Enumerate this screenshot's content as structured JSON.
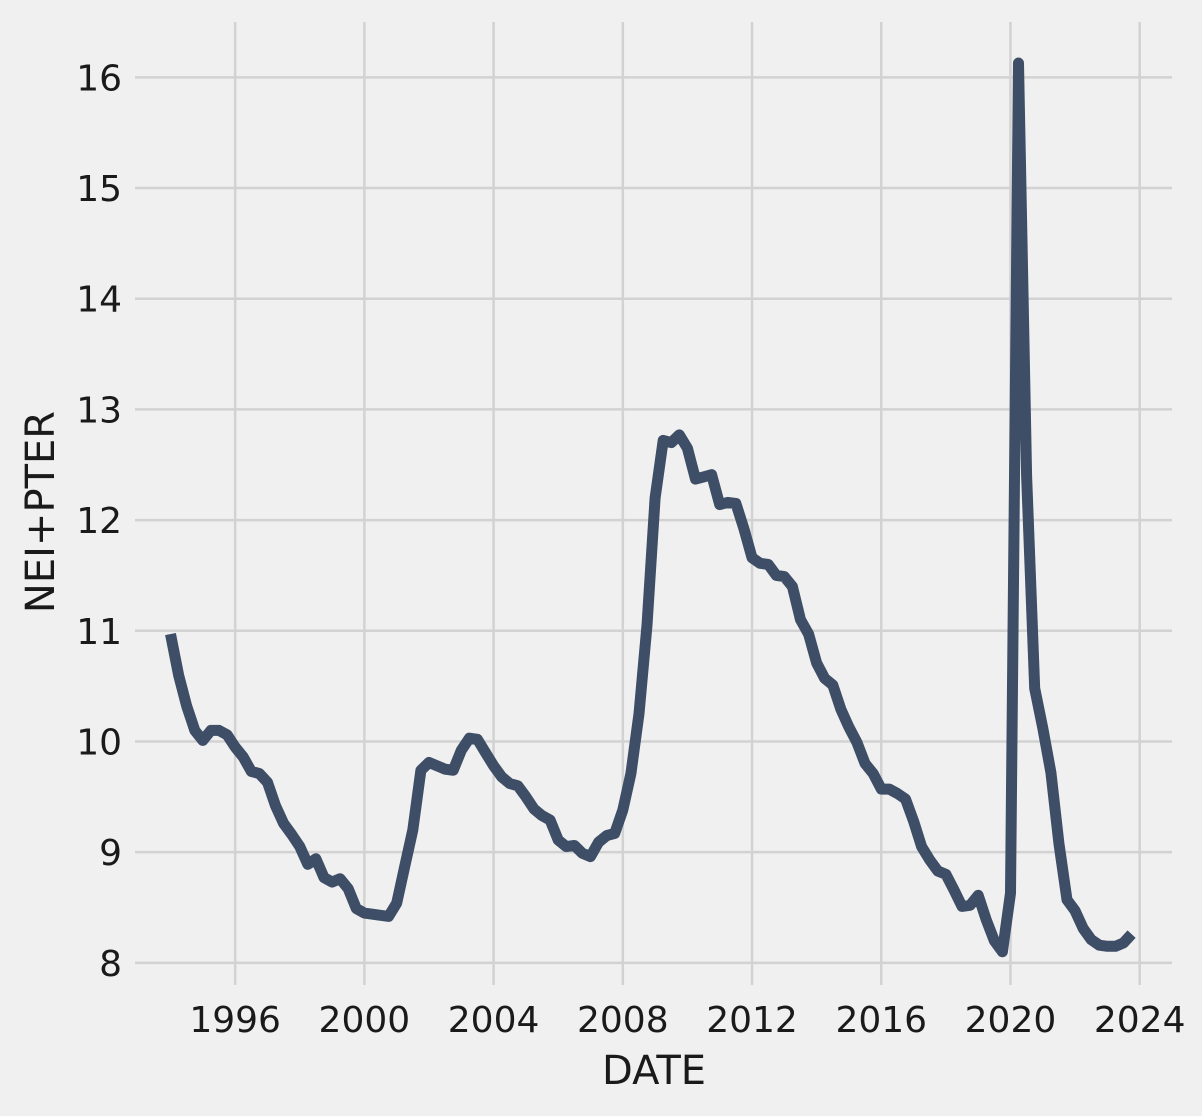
{
  "chart_data": {
    "type": "line",
    "title": "",
    "xlabel": "DATE",
    "ylabel": "NEI+PTER",
    "xlim": [
      1992.9,
      2025.0
    ],
    "ylim": [
      7.8,
      16.5
    ],
    "grid": true,
    "line_color": "#3e4e66",
    "background": "#f0f0f0",
    "x_ticks": [
      {
        "value": 1996,
        "label": "1996"
      },
      {
        "value": 2000,
        "label": "2000"
      },
      {
        "value": 2004,
        "label": "2004"
      },
      {
        "value": 2008,
        "label": "2008"
      },
      {
        "value": 2012,
        "label": "2012"
      },
      {
        "value": 2016,
        "label": "2016"
      },
      {
        "value": 2020,
        "label": "2020"
      },
      {
        "value": 2024,
        "label": "2024"
      }
    ],
    "y_ticks": [
      {
        "value": 8,
        "label": "8"
      },
      {
        "value": 9,
        "label": "9"
      },
      {
        "value": 10,
        "label": "10"
      },
      {
        "value": 11,
        "label": "11"
      },
      {
        "value": 12,
        "label": "12"
      },
      {
        "value": 13,
        "label": "13"
      },
      {
        "value": 14,
        "label": "14"
      },
      {
        "value": 15,
        "label": "15"
      },
      {
        "value": 16,
        "label": "16"
      }
    ],
    "series": [
      {
        "x": [
          1994.0,
          1994.25,
          1994.5,
          1994.75,
          1995.0,
          1995.25,
          1995.5,
          1995.75,
          1996.0,
          1996.25,
          1996.5,
          1996.75,
          1997.0,
          1997.25,
          1997.5,
          1997.75,
          1998.0,
          1998.25,
          1998.5,
          1998.75,
          1999.0,
          1999.25,
          1999.5,
          1999.75,
          2000.0,
          2000.25,
          2000.5,
          2000.75,
          2001.0,
          2001.25,
          2001.5,
          2001.75,
          2002.0,
          2002.25,
          2002.5,
          2002.75,
          2003.0,
          2003.25,
          2003.5,
          2003.75,
          2004.0,
          2004.25,
          2004.5,
          2004.75,
          2005.0,
          2005.25,
          2005.5,
          2005.75,
          2006.0,
          2006.25,
          2006.5,
          2006.75,
          2007.0,
          2007.25,
          2007.5,
          2007.75,
          2008.0,
          2008.25,
          2008.5,
          2008.75,
          2009.0,
          2009.25,
          2009.5,
          2009.75,
          2010.0,
          2010.25,
          2010.5,
          2010.75,
          2011.0,
          2011.25,
          2011.5,
          2011.75,
          2012.0,
          2012.25,
          2012.5,
          2012.75,
          2013.0,
          2013.25,
          2013.5,
          2013.75,
          2014.0,
          2014.25,
          2014.5,
          2014.75,
          2015.0,
          2015.25,
          2015.5,
          2015.75,
          2016.0,
          2016.25,
          2016.5,
          2016.75,
          2017.0,
          2017.25,
          2017.5,
          2017.75,
          2018.0,
          2018.25,
          2018.5,
          2018.75,
          2019.0,
          2019.25,
          2019.5,
          2019.75,
          2020.0,
          2020.25,
          2020.5,
          2020.75,
          2021.0,
          2021.25,
          2021.5,
          2021.75,
          2022.0,
          2022.25,
          2022.5,
          2022.75,
          2023.0,
          2023.25,
          2023.5,
          2023.75
        ],
        "y": [
          10.97,
          10.6,
          10.32,
          10.1,
          10.01,
          10.1,
          10.1,
          10.06,
          9.95,
          9.86,
          9.73,
          9.71,
          9.63,
          9.42,
          9.26,
          9.16,
          9.05,
          8.89,
          8.94,
          8.77,
          8.73,
          8.76,
          8.67,
          8.49,
          8.45,
          8.44,
          8.43,
          8.42,
          8.54,
          8.87,
          9.2,
          9.74,
          9.81,
          9.78,
          9.75,
          9.74,
          9.92,
          10.03,
          10.02,
          9.9,
          9.78,
          9.68,
          9.62,
          9.6,
          9.5,
          9.39,
          9.33,
          9.29,
          9.11,
          9.05,
          9.06,
          8.99,
          8.96,
          9.09,
          9.15,
          9.17,
          9.38,
          9.71,
          10.25,
          11.05,
          12.2,
          12.72,
          12.7,
          12.77,
          12.65,
          12.37,
          12.39,
          12.41,
          12.14,
          12.16,
          12.15,
          11.92,
          11.66,
          11.61,
          11.6,
          11.5,
          11.49,
          11.4,
          11.1,
          10.97,
          10.71,
          10.57,
          10.51,
          10.29,
          10.13,
          9.99,
          9.8,
          9.71,
          9.57,
          9.57,
          9.53,
          9.48,
          9.28,
          9.05,
          8.93,
          8.83,
          8.8,
          8.66,
          8.51,
          8.52,
          8.61,
          8.39,
          8.2,
          8.1,
          8.63,
          16.13,
          12.4,
          10.48,
          10.12,
          9.72,
          9.08,
          8.57,
          8.47,
          8.31,
          8.21,
          8.16,
          8.15,
          8.15,
          8.18,
          8.26
        ]
      }
    ]
  }
}
